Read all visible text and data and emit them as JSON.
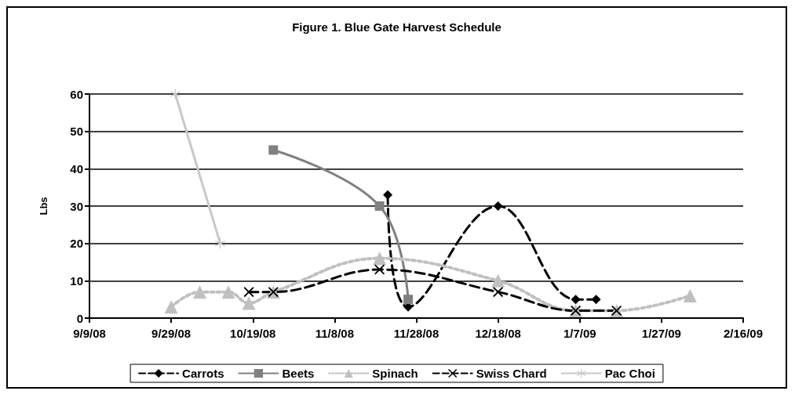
{
  "chart_data": {
    "type": "line",
    "title": "Figure 1. Blue Gate Harvest Schedule",
    "ylabel": "Lbs",
    "xlim": [
      "2008-09-09",
      "2009-02-16"
    ],
    "xticks": [
      {
        "value": "2008-09-09",
        "label": "9/9/08"
      },
      {
        "value": "2008-09-29",
        "label": "9/29/08"
      },
      {
        "value": "2008-10-19",
        "label": "10/19/08"
      },
      {
        "value": "2008-11-08",
        "label": "11/8/08"
      },
      {
        "value": "2008-11-28",
        "label": "11/28/08"
      },
      {
        "value": "2008-12-18",
        "label": "12/18/08"
      },
      {
        "value": "2009-01-07",
        "label": "1/7/09"
      },
      {
        "value": "2009-01-27",
        "label": "1/27/09"
      },
      {
        "value": "2009-02-16",
        "label": "2/16/09"
      }
    ],
    "ylim": [
      0,
      60
    ],
    "yticks": [
      0,
      10,
      20,
      30,
      40,
      50,
      60
    ],
    "grid": "y",
    "legend": "bottom",
    "series": [
      {
        "name": "Carrots",
        "color": "#000000",
        "marker": "diamond",
        "line_style": "dashed",
        "x": [
          "2008-11-21",
          "2008-11-26",
          "2008-12-18",
          "2009-01-06",
          "2009-01-11"
        ],
        "values": [
          33,
          3,
          30,
          5,
          5
        ]
      },
      {
        "name": "Beets",
        "color": "#808080",
        "marker": "square",
        "line_style": "solid",
        "x": [
          "2008-10-24",
          "2008-11-19",
          "2008-11-26"
        ],
        "values": [
          45,
          30,
          5
        ]
      },
      {
        "name": "Spinach",
        "color": "#c0c0c0",
        "marker": "triangle",
        "line_style": "dotted",
        "x": [
          "2008-09-29",
          "2008-10-06",
          "2008-10-13",
          "2008-10-18",
          "2008-10-24",
          "2008-11-19",
          "2008-12-18",
          "2009-01-06",
          "2009-01-16",
          "2009-02-03"
        ],
        "values": [
          3,
          7,
          7,
          4,
          7,
          16,
          10,
          2,
          2,
          6
        ]
      },
      {
        "name": "Swiss Chard",
        "color": "#000000",
        "marker": "cross",
        "line_style": "dashed",
        "x": [
          "2008-10-18",
          "2008-10-24",
          "2008-11-19",
          "2008-12-18",
          "2009-01-06",
          "2009-01-16"
        ],
        "values": [
          7,
          7,
          13,
          7,
          2,
          2
        ]
      },
      {
        "name": "Pac Choi",
        "color": "#c8c8c8",
        "marker": "star",
        "line_style": "solid",
        "x": [
          "2008-09-30",
          "2008-10-11"
        ],
        "values": [
          60,
          20
        ]
      }
    ]
  }
}
